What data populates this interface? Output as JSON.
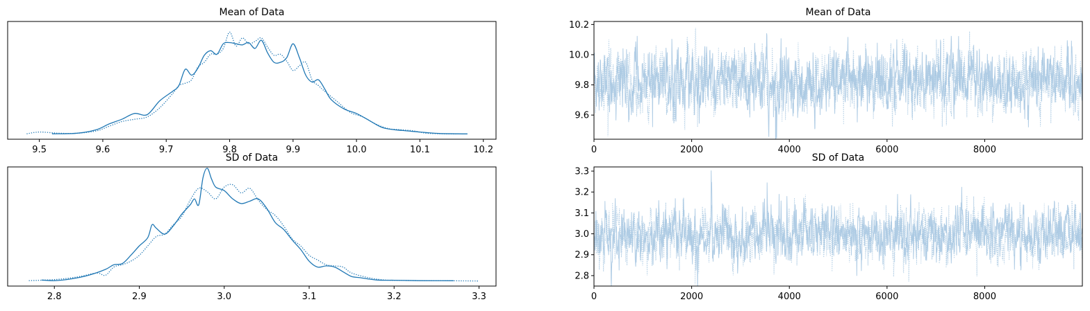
{
  "chart_data": [
    {
      "type": "line",
      "panel": "kde",
      "title": "Mean of Data",
      "xlim": [
        9.45,
        10.22
      ],
      "xticks": [
        "9.5",
        "9.6",
        "9.7",
        "9.8",
        "9.9",
        "10.0",
        "10.1",
        "10.2"
      ],
      "yticks": [],
      "series": [
        {
          "style": "solid",
          "x": [
            9.52,
            9.56,
            9.59,
            9.61,
            9.63,
            9.65,
            9.67,
            9.69,
            9.71,
            9.72,
            9.73,
            9.74,
            9.75,
            9.76,
            9.77,
            9.78,
            9.79,
            9.8,
            9.81,
            9.82,
            9.83,
            9.84,
            9.85,
            9.86,
            9.87,
            9.88,
            9.89,
            9.9,
            9.91,
            9.92,
            9.93,
            9.94,
            9.95,
            9.96,
            9.98,
            10.0,
            10.02,
            10.04,
            10.06,
            10.08,
            10.1,
            10.13,
            10.16,
            10.175
          ],
          "y": [
            0.005,
            0.01,
            0.04,
            0.09,
            0.13,
            0.18,
            0.17,
            0.29,
            0.37,
            0.42,
            0.56,
            0.51,
            0.57,
            0.68,
            0.72,
            0.69,
            0.78,
            0.79,
            0.78,
            0.77,
            0.79,
            0.74,
            0.81,
            0.7,
            0.62,
            0.62,
            0.66,
            0.78,
            0.66,
            0.51,
            0.45,
            0.47,
            0.39,
            0.3,
            0.22,
            0.18,
            0.12,
            0.06,
            0.04,
            0.03,
            0.02,
            0.008,
            0.005,
            0.004
          ]
        },
        {
          "style": "dotted",
          "x": [
            9.48,
            9.5,
            9.53,
            9.56,
            9.59,
            9.61,
            9.63,
            9.65,
            9.67,
            9.69,
            9.71,
            9.72,
            9.73,
            9.74,
            9.75,
            9.76,
            9.77,
            9.78,
            9.79,
            9.8,
            9.81,
            9.82,
            9.83,
            9.84,
            9.85,
            9.86,
            9.87,
            9.88,
            9.89,
            9.9,
            9.91,
            9.92,
            9.93,
            9.94,
            9.95,
            9.97,
            9.99,
            10.01,
            10.03,
            10.05,
            10.07,
            10.09,
            10.11,
            10.14,
            10.16
          ],
          "y": [
            0.005,
            0.02,
            0.01,
            0.01,
            0.03,
            0.07,
            0.11,
            0.13,
            0.15,
            0.23,
            0.35,
            0.42,
            0.44,
            0.47,
            0.58,
            0.62,
            0.69,
            0.69,
            0.74,
            0.88,
            0.76,
            0.83,
            0.78,
            0.8,
            0.83,
            0.75,
            0.68,
            0.69,
            0.63,
            0.55,
            0.59,
            0.62,
            0.47,
            0.42,
            0.37,
            0.28,
            0.19,
            0.15,
            0.09,
            0.05,
            0.04,
            0.03,
            0.01,
            0.005,
            0.004
          ]
        }
      ]
    },
    {
      "type": "line",
      "panel": "trace",
      "title": "Mean of Data",
      "xlim": [
        0,
        9999
      ],
      "ylim": [
        9.44,
        10.22
      ],
      "xticks": [
        "0",
        "2000",
        "4000",
        "6000",
        "8000"
      ],
      "yticks": [
        "9.6",
        "9.8",
        "10.0",
        "10.2"
      ],
      "samples": 10000,
      "center": 9.82,
      "spread": 0.1,
      "color": "#a8c8e2"
    },
    {
      "type": "line",
      "panel": "kde",
      "title": "SD of Data",
      "xlim": [
        2.745,
        3.32
      ],
      "xticks": [
        "2.8",
        "2.9",
        "3.0",
        "3.1",
        "3.2",
        "3.3"
      ],
      "yticks": [],
      "series": [
        {
          "style": "solid",
          "x": [
            2.785,
            2.8,
            2.82,
            2.84,
            2.86,
            2.87,
            2.88,
            2.89,
            2.9,
            2.91,
            2.915,
            2.92,
            2.93,
            2.94,
            2.95,
            2.96,
            2.965,
            2.97,
            2.975,
            2.98,
            2.985,
            2.99,
            3.0,
            3.01,
            3.02,
            3.03,
            3.04,
            3.05,
            3.06,
            3.07,
            3.08,
            3.09,
            3.1,
            3.11,
            3.12,
            3.13,
            3.14,
            3.15,
            3.16,
            3.18,
            3.2,
            3.23,
            3.27
          ],
          "y": [
            0.01,
            0.005,
            0.02,
            0.05,
            0.1,
            0.14,
            0.15,
            0.22,
            0.3,
            0.37,
            0.48,
            0.45,
            0.4,
            0.47,
            0.57,
            0.65,
            0.7,
            0.65,
            0.88,
            0.96,
            0.87,
            0.8,
            0.77,
            0.7,
            0.66,
            0.68,
            0.7,
            0.62,
            0.5,
            0.44,
            0.35,
            0.27,
            0.17,
            0.12,
            0.13,
            0.12,
            0.08,
            0.04,
            0.03,
            0.01,
            0.008,
            0.005,
            0.004
          ]
        },
        {
          "style": "dotted",
          "x": [
            2.77,
            2.79,
            2.81,
            2.83,
            2.85,
            2.86,
            2.87,
            2.88,
            2.89,
            2.9,
            2.91,
            2.92,
            2.93,
            2.94,
            2.95,
            2.96,
            2.97,
            2.98,
            2.99,
            3.0,
            3.01,
            3.02,
            3.03,
            3.04,
            3.05,
            3.06,
            3.07,
            3.08,
            3.09,
            3.1,
            3.11,
            3.12,
            3.13,
            3.14,
            3.15,
            3.17,
            3.19,
            3.22,
            3.26,
            3.3
          ],
          "y": [
            0.005,
            0.01,
            0.02,
            0.04,
            0.07,
            0.05,
            0.12,
            0.14,
            0.17,
            0.22,
            0.3,
            0.38,
            0.4,
            0.48,
            0.55,
            0.69,
            0.79,
            0.76,
            0.7,
            0.8,
            0.82,
            0.75,
            0.79,
            0.69,
            0.61,
            0.56,
            0.47,
            0.36,
            0.3,
            0.22,
            0.18,
            0.14,
            0.13,
            0.12,
            0.07,
            0.03,
            0.01,
            0.006,
            0.004,
            0.002
          ]
        }
      ]
    },
    {
      "type": "line",
      "panel": "trace",
      "title": "SD of Data",
      "xlim": [
        0,
        9999
      ],
      "ylim": [
        2.75,
        3.32
      ],
      "xticks": [
        "0",
        "2000",
        "4000",
        "6000",
        "8000"
      ],
      "yticks": [
        "2.8",
        "2.9",
        "3.0",
        "3.1",
        "3.2",
        "3.3"
      ],
      "samples": 10000,
      "center": 2.995,
      "spread": 0.065,
      "color": "#a8c8e2"
    }
  ],
  "style": {
    "line_color": "#1f77b4",
    "trace_color": "#a8c8e2",
    "axis_color": "#000000"
  }
}
